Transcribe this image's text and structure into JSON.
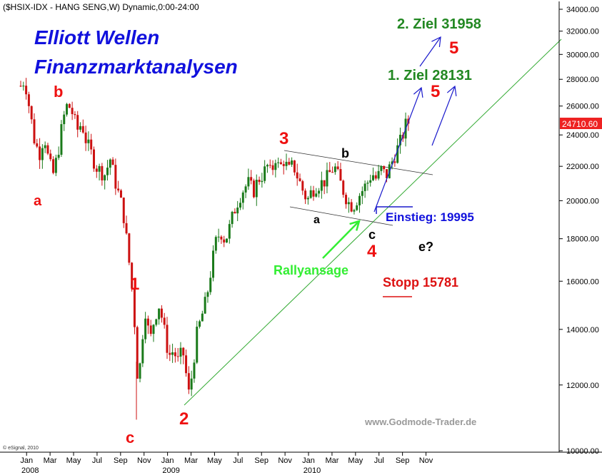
{
  "chart_data": {
    "type": "candlestick",
    "header": "($HSIX-IDX - HANG SENG,W) Dynamic,0:00-24:00",
    "title_line1": "Elliott Wellen",
    "title_line2": "Finanzmarktanalysen",
    "watermark": "www.Godmode-Trader.de",
    "copyright": "© eSignal, 2010",
    "last_price": "24710.60",
    "y_scale": "log",
    "ylim": [
      10000,
      35000
    ],
    "y_ticks": [
      {
        "v": 34000,
        "label": "34000.00"
      },
      {
        "v": 32000,
        "label": "32000.00"
      },
      {
        "v": 30000,
        "label": "30000.00"
      },
      {
        "v": 28000,
        "label": "28000.00"
      },
      {
        "v": 26000,
        "label": "26000.00"
      },
      {
        "v": 24000,
        "label": "24000.00"
      },
      {
        "v": 22000,
        "label": "22000.00"
      },
      {
        "v": 20000,
        "label": "20000.00"
      },
      {
        "v": 18000,
        "label": "18000.00"
      },
      {
        "v": 16000,
        "label": "16000.00"
      },
      {
        "v": 14000,
        "label": "14000.00"
      },
      {
        "v": 12000,
        "label": "12000.00"
      },
      {
        "v": 10000,
        "label": "10000.00"
      }
    ],
    "x_ticks": [
      {
        "t": 0.5,
        "label": "Jan"
      },
      {
        "t": 2.5,
        "label": "Mar"
      },
      {
        "t": 4.5,
        "label": "May"
      },
      {
        "t": 6.5,
        "label": "Jul"
      },
      {
        "t": 8.5,
        "label": "Sep"
      },
      {
        "t": 10.5,
        "label": "Nov"
      },
      {
        "t": 12.5,
        "label": "Jan"
      },
      {
        "t": 14.5,
        "label": "Mar"
      },
      {
        "t": 16.5,
        "label": "May"
      },
      {
        "t": 18.5,
        "label": "Jul"
      },
      {
        "t": 20.5,
        "label": "Sep"
      },
      {
        "t": 22.5,
        "label": "Nov"
      },
      {
        "t": 24.5,
        "label": "Jan"
      },
      {
        "t": 26.5,
        "label": "Mar"
      },
      {
        "t": 28.5,
        "label": "May"
      },
      {
        "t": 30.5,
        "label": "Jul"
      },
      {
        "t": 32.5,
        "label": "Sep"
      },
      {
        "t": 34.5,
        "label": "Nov"
      }
    ],
    "year_labels": [
      {
        "t": 0.0,
        "label": "2008"
      },
      {
        "t": 12.0,
        "label": "2009"
      },
      {
        "t": 24.0,
        "label": "2010"
      }
    ],
    "xlim_months": [
      -1.2,
      47.3
    ],
    "path_points": [
      [
        0.0,
        27500
      ],
      [
        0.35,
        28000
      ],
      [
        0.8,
        25500
      ],
      [
        1.2,
        23500
      ],
      [
        1.6,
        22800
      ],
      [
        2.0,
        24000
      ],
      [
        2.4,
        22200
      ],
      [
        2.8,
        21500
      ],
      [
        3.2,
        23000
      ],
      [
        3.6,
        25000
      ],
      [
        4.0,
        26200
      ],
      [
        4.4,
        25500
      ],
      [
        4.8,
        24300
      ],
      [
        5.2,
        24800
      ],
      [
        5.6,
        23500
      ],
      [
        6.0,
        22800
      ],
      [
        6.4,
        22000
      ],
      [
        6.8,
        21700
      ],
      [
        7.2,
        21500
      ],
      [
        7.6,
        22500
      ],
      [
        8.0,
        21200
      ],
      [
        8.4,
        20200
      ],
      [
        8.7,
        19500
      ],
      [
        9.0,
        18000
      ],
      [
        9.3,
        16500
      ],
      [
        9.6,
        15000
      ],
      [
        9.85,
        13000
      ],
      [
        10.0,
        11800
      ],
      [
        10.3,
        13500
      ],
      [
        10.6,
        14800
      ],
      [
        11.0,
        13500
      ],
      [
        11.4,
        14500
      ],
      [
        11.8,
        15000
      ],
      [
        12.2,
        14000
      ],
      [
        12.6,
        13000
      ],
      [
        13.0,
        13200
      ],
      [
        13.4,
        12800
      ],
      [
        13.8,
        13200
      ],
      [
        14.1,
        12300
      ],
      [
        14.35,
        11600
      ],
      [
        14.7,
        12800
      ],
      [
        15.0,
        13800
      ],
      [
        15.4,
        14500
      ],
      [
        15.8,
        15200
      ],
      [
        16.2,
        16500
      ],
      [
        16.6,
        17800
      ],
      [
        17.0,
        18400
      ],
      [
        17.4,
        17900
      ],
      [
        17.8,
        18600
      ],
      [
        18.2,
        19500
      ],
      [
        18.6,
        20200
      ],
      [
        19.0,
        20700
      ],
      [
        19.4,
        21000
      ],
      [
        19.8,
        20500
      ],
      [
        20.2,
        21200
      ],
      [
        20.6,
        21500
      ],
      [
        21.0,
        22000
      ],
      [
        21.3,
        21500
      ],
      [
        21.7,
        22600
      ],
      [
        22.0,
        21800
      ],
      [
        22.4,
        22400
      ],
      [
        22.8,
        21700
      ],
      [
        23.2,
        22100
      ],
      [
        23.6,
        21300
      ],
      [
        24.0,
        20600
      ],
      [
        24.4,
        20000
      ],
      [
        24.8,
        20600
      ],
      [
        25.2,
        20900
      ],
      [
        25.6,
        21000
      ],
      [
        26.0,
        21200
      ],
      [
        26.4,
        21700
      ],
      [
        26.7,
        22000
      ],
      [
        27.1,
        21200
      ],
      [
        27.5,
        20500
      ],
      [
        27.9,
        19900
      ],
      [
        28.3,
        19700
      ],
      [
        28.7,
        20200
      ],
      [
        29.1,
        20600
      ],
      [
        29.5,
        21000
      ],
      [
        29.9,
        21600
      ],
      [
        30.3,
        21200
      ],
      [
        30.7,
        21800
      ],
      [
        31.1,
        21400
      ],
      [
        31.5,
        22100
      ],
      [
        31.9,
        22800
      ],
      [
        32.3,
        23500
      ],
      [
        32.6,
        24200
      ],
      [
        32.9,
        25000
      ],
      [
        33.1,
        24710
      ]
    ],
    "annotations": {
      "wave_1": "1",
      "wave_2": "2",
      "wave_3": "3",
      "wave_4": "4",
      "wave_5_a": "5",
      "wave_5_b": "5",
      "wave_a_left": "a",
      "wave_b_left": "b",
      "wave_c_left": "c",
      "wave_a_right": "a",
      "wave_b_right": "b",
      "wave_c_right": "c",
      "wave_e": "e?",
      "target_1": "1. Ziel 28131",
      "target_2": "2. Ziel 31958",
      "entry": "Einstieg: 19995",
      "stop": "Stopp 15781",
      "rally": "Rallyansage"
    }
  },
  "colors": {
    "up_candle": "#1a7a1a",
    "down_candle": "#cc1111",
    "trendline": "#33aa33",
    "wave_red": "#ee1111",
    "target_green": "#228822",
    "title_blue": "#1111dd",
    "arrow_blue": "#1a1acc",
    "rally_green": "#33ee33",
    "price_box": "#ee2222"
  }
}
